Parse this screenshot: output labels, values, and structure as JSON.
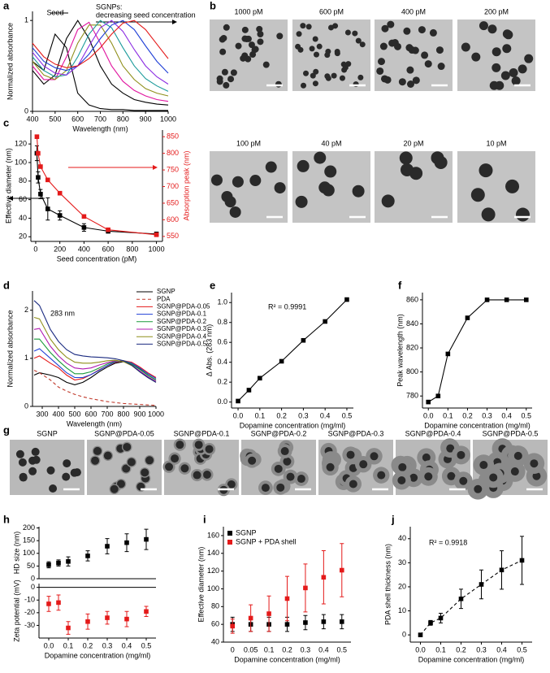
{
  "chart_data": [
    {
      "type": "line",
      "panel_label": "a",
      "xlabel": "Wavelength (nm)",
      "ylabel": "Normalized absorbance",
      "annotations": [
        "Seed",
        "SGNPs:",
        "decreasing seed concentration"
      ],
      "x": [
        400,
        450,
        500,
        550,
        600,
        650,
        700,
        750,
        800,
        850,
        900,
        950,
        1000
      ],
      "xlim": [
        400,
        1000
      ],
      "xticks": [
        400,
        500,
        600,
        700,
        800,
        900,
        1000
      ],
      "ylim": [
        0,
        1.1
      ],
      "yticks": [
        0,
        1
      ],
      "series": [
        {
          "color": "#000000",
          "values": [
            0.55,
            0.45,
            0.85,
            0.7,
            0.2,
            0.07,
            0.03,
            0.02,
            0.02,
            0.01,
            0.01,
            0.01,
            0.01
          ]
        },
        {
          "color": "#000000",
          "values": [
            0.45,
            0.3,
            0.4,
            0.8,
            1.0,
            0.8,
            0.5,
            0.3,
            0.2,
            0.13,
            0.1,
            0.08,
            0.07
          ]
        },
        {
          "color": "#e0139e",
          "values": [
            0.5,
            0.35,
            0.35,
            0.6,
            0.9,
            0.98,
            0.75,
            0.5,
            0.33,
            0.23,
            0.17,
            0.13,
            0.11
          ]
        },
        {
          "color": "#8f8f1a",
          "values": [
            0.55,
            0.4,
            0.35,
            0.45,
            0.75,
            0.95,
            0.95,
            0.75,
            0.5,
            0.35,
            0.25,
            0.2,
            0.17
          ]
        },
        {
          "color": "#1a9a9a",
          "values": [
            0.6,
            0.45,
            0.38,
            0.4,
            0.6,
            0.85,
            1.0,
            0.92,
            0.7,
            0.5,
            0.36,
            0.28,
            0.22
          ]
        },
        {
          "color": "#8a2be2",
          "values": [
            0.65,
            0.5,
            0.42,
            0.4,
            0.5,
            0.72,
            0.92,
            1.0,
            0.88,
            0.68,
            0.5,
            0.38,
            0.3
          ]
        },
        {
          "color": "#1f3fd6",
          "values": [
            0.7,
            0.55,
            0.48,
            0.45,
            0.5,
            0.63,
            0.8,
            0.95,
            1.0,
            0.9,
            0.72,
            0.55,
            0.42
          ]
        },
        {
          "color": "#e41a1a",
          "values": [
            0.75,
            0.6,
            0.52,
            0.48,
            0.5,
            0.58,
            0.7,
            0.85,
            0.97,
            1.0,
            0.9,
            0.74,
            0.58
          ]
        }
      ]
    },
    {
      "type": "line",
      "panel_label": "c",
      "markers": true,
      "xlabel": "Seed concentration (pM)",
      "ylabel": "Effective diameter (nm)",
      "y2label": "Absorption peak (nm)",
      "y2color": "#e41a1a",
      "x": [
        10,
        20,
        40,
        100,
        200,
        400,
        600,
        1000
      ],
      "xlim": [
        -40,
        1050
      ],
      "xticks": [
        0,
        200,
        400,
        600,
        800,
        1000
      ],
      "ylim": [
        15,
        135
      ],
      "yticks": [
        20,
        40,
        60,
        80,
        100,
        120
      ],
      "y2lim": [
        535,
        870
      ],
      "y2ticks": [
        550,
        600,
        650,
        700,
        750,
        800,
        850
      ],
      "series": [
        {
          "color": "#000000",
          "values": [
            110,
            84,
            66,
            50,
            43,
            30,
            26,
            23
          ],
          "errors": [
            8,
            6,
            5,
            12,
            5,
            4,
            2,
            2
          ]
        },
        {
          "color": "#e41a1a",
          "axis": "y2",
          "values": [
            850,
            800,
            760,
            720,
            680,
            610,
            570,
            555
          ]
        }
      ]
    },
    {
      "type": "line",
      "panel_label": "d",
      "xlabel": "Wavelength (nm)",
      "ylabel": "Normalized absorbance",
      "annotations": [
        "283 nm"
      ],
      "legend": "upper right",
      "x": [
        250,
        283,
        350,
        400,
        450,
        500,
        550,
        600,
        650,
        700,
        750,
        800,
        850,
        900,
        950,
        1000
      ],
      "xlim": [
        240,
        1000
      ],
      "xticks": [
        300,
        400,
        500,
        600,
        700,
        800,
        900,
        1000
      ],
      "ylim": [
        0,
        2.4
      ],
      "yticks": [
        0,
        1,
        2
      ],
      "series": [
        {
          "name": "SGNP",
          "color": "#000000",
          "values": [
            0.65,
            0.7,
            0.65,
            0.6,
            0.5,
            0.45,
            0.5,
            0.6,
            0.72,
            0.82,
            0.9,
            0.93,
            0.88,
            0.78,
            0.65,
            0.55
          ]
        },
        {
          "name": "PDA",
          "color": "#c0392b",
          "dash": true,
          "values": [
            0.75,
            0.7,
            0.55,
            0.4,
            0.32,
            0.25,
            0.2,
            0.16,
            0.13,
            0.1,
            0.08,
            0.06,
            0.05,
            0.04,
            0.03,
            0.02
          ]
        },
        {
          "name": "SGNP@PDA-0.05",
          "color": "#e41a1a",
          "values": [
            1.0,
            1.05,
            0.9,
            0.8,
            0.65,
            0.55,
            0.58,
            0.66,
            0.76,
            0.85,
            0.92,
            0.95,
            0.92,
            0.82,
            0.7,
            0.6
          ]
        },
        {
          "name": "SGNP@PDA-0.1",
          "color": "#1f3fd6",
          "values": [
            1.15,
            1.2,
            1.0,
            0.85,
            0.7,
            0.6,
            0.6,
            0.66,
            0.75,
            0.85,
            0.93,
            0.95,
            0.9,
            0.8,
            0.68,
            0.58
          ]
        },
        {
          "name": "SGNP@PDA-0.2",
          "color": "#1a9a3a",
          "values": [
            1.4,
            1.4,
            1.12,
            0.95,
            0.8,
            0.68,
            0.68,
            0.72,
            0.8,
            0.88,
            0.94,
            0.95,
            0.88,
            0.77,
            0.65,
            0.55
          ]
        },
        {
          "name": "SGNP@PDA-0.3",
          "color": "#b01ab0",
          "values": [
            1.6,
            1.62,
            1.25,
            1.05,
            0.9,
            0.8,
            0.78,
            0.8,
            0.86,
            0.91,
            0.95,
            0.94,
            0.86,
            0.74,
            0.62,
            0.52
          ]
        },
        {
          "name": "SGNP@PDA-0.4",
          "color": "#8f8f1a",
          "values": [
            1.85,
            1.82,
            1.4,
            1.18,
            1.02,
            0.92,
            0.9,
            0.9,
            0.92,
            0.95,
            0.96,
            0.93,
            0.85,
            0.72,
            0.6,
            0.5
          ]
        },
        {
          "name": "SGNP@PDA-0.5",
          "color": "#1a2a80",
          "values": [
            2.2,
            2.1,
            1.6,
            1.35,
            1.18,
            1.08,
            1.05,
            1.03,
            1.02,
            1.01,
            0.99,
            0.95,
            0.86,
            0.72,
            0.6,
            0.5
          ]
        }
      ]
    },
    {
      "type": "line",
      "panel_label": "e",
      "markers": true,
      "xlabel": "Dopamine concentration (mg/ml)",
      "ylabel": "Δ Abs. (283 nm)",
      "annotations": [
        "R² = 0.9991"
      ],
      "x": [
        0,
        0.05,
        0.1,
        0.2,
        0.3,
        0.4,
        0.5
      ],
      "xlim": [
        -0.03,
        0.53
      ],
      "xticks": [
        {
          "value": 0,
          "label": "0.0"
        },
        {
          "value": 0.1,
          "label": "0.1"
        },
        {
          "value": 0.2,
          "label": "0.2"
        },
        {
          "value": 0.3,
          "label": "0.3"
        },
        {
          "value": 0.4,
          "label": "0.4"
        },
        {
          "value": 0.5,
          "label": "0.5"
        }
      ],
      "ylim": [
        -0.06,
        1.1
      ],
      "yticks": [
        {
          "value": 0,
          "label": "0.0"
        },
        {
          "value": 0.2,
          "label": "0.2"
        },
        {
          "value": 0.4,
          "label": "0.4"
        },
        {
          "value": 0.6,
          "label": "0.6"
        },
        {
          "value": 0.8,
          "label": "0.8"
        },
        {
          "value": 1,
          "label": "1.0"
        }
      ],
      "series": [
        {
          "color": "#000000",
          "values": [
            0.01,
            0.12,
            0.24,
            0.41,
            0.62,
            0.81,
            1.03
          ]
        }
      ]
    },
    {
      "type": "line",
      "panel_label": "f",
      "markers": true,
      "xlabel": "Dopamine concentration (mg/ml)",
      "ylabel": "Peak wavelength (nm)",
      "x": [
        0,
        0.05,
        0.1,
        0.2,
        0.3,
        0.4,
        0.5
      ],
      "xlim": [
        -0.03,
        0.53
      ],
      "xticks": [
        {
          "value": 0,
          "label": "0.0"
        },
        {
          "value": 0.1,
          "label": "0.1"
        },
        {
          "value": 0.2,
          "label": "0.2"
        },
        {
          "value": 0.3,
          "label": "0.3"
        },
        {
          "value": 0.4,
          "label": "0.4"
        },
        {
          "value": 0.5,
          "label": "0.5"
        }
      ],
      "ylim": [
        770,
        866
      ],
      "yticks": [
        780,
        800,
        820,
        840,
        860
      ],
      "series": [
        {
          "color": "#000000",
          "values": [
            775,
            780,
            815,
            845,
            860,
            860,
            860
          ]
        }
      ]
    },
    {
      "type": "scatter",
      "panel_label": "h",
      "ylabel": "HD size (nm)",
      "x": [
        0,
        0.05,
        0.1,
        0.2,
        0.3,
        0.4,
        0.5
      ],
      "xlim": [
        -0.05,
        0.55
      ],
      "ylim": [
        0,
        205
      ],
      "yticks": [
        0,
        50,
        100,
        150,
        200
      ],
      "series": [
        {
          "color": "#000000",
          "values": [
            55,
            62,
            68,
            90,
            128,
            142,
            155
          ],
          "errors": [
            12,
            12,
            18,
            20,
            30,
            35,
            40
          ]
        }
      ]
    },
    {
      "type": "scatter",
      "zero_line": true,
      "xlabel": "Dopamine concentration (mg/ml)",
      "ylabel": "Zeta potential (mV)",
      "x": [
        0,
        0.05,
        0.1,
        0.2,
        0.3,
        0.4,
        0.5
      ],
      "xlim": [
        -0.05,
        0.55
      ],
      "xticks": [
        {
          "value": 0,
          "label": "0.0"
        },
        {
          "value": 0.1,
          "label": "0.1"
        },
        {
          "value": 0.2,
          "label": "0.2"
        },
        {
          "value": 0.3,
          "label": "0.3"
        },
        {
          "value": 0.4,
          "label": "0.4"
        },
        {
          "value": 0.5,
          "label": "0.5"
        }
      ],
      "ylim": [
        -40,
        3
      ],
      "yticks": [
        -30,
        -20,
        -10,
        0
      ],
      "series": [
        {
          "color": "#e41a1a",
          "values": [
            -13,
            -12,
            -32,
            -27,
            -24,
            -25,
            -19
          ],
          "errors": [
            6,
            6,
            5,
            6,
            5,
            6,
            4
          ]
        }
      ]
    },
    {
      "type": "scatter",
      "panel_label": "i",
      "legend": "upper left",
      "xlabel": "Dopamine concentration (mg/ml)",
      "ylabel": "Effective diameter (nm)",
      "categories": [
        "0",
        "0.05",
        "0.1",
        "0.2",
        "0.3",
        "0.4",
        "0.5"
      ],
      "ylim": [
        40,
        170
      ],
      "yticks": [
        40,
        60,
        80,
        100,
        120,
        140,
        160
      ],
      "series": [
        {
          "name": "SGNP",
          "color": "#000000",
          "values": [
            60,
            60,
            60,
            60,
            62,
            63,
            63
          ],
          "errors": [
            8,
            8,
            8,
            8,
            8,
            8,
            8
          ]
        },
        {
          "name": "SGNP + PDA shell",
          "color": "#e41a1a",
          "values": [
            58,
            67,
            72,
            89,
            101,
            113,
            121
          ],
          "errors": [
            8,
            15,
            20,
            25,
            27,
            30,
            30
          ]
        }
      ]
    },
    {
      "type": "line",
      "panel_label": "j",
      "markers": true,
      "xlabel": "Dopamine concentration (mg/ml)",
      "ylabel": "PDA shell thickness (nm)",
      "annotations": [
        "R² = 0.9918"
      ],
      "x": [
        0,
        0.05,
        0.1,
        0.2,
        0.3,
        0.4,
        0.5
      ],
      "xlim": [
        -0.05,
        0.55
      ],
      "xticks": [
        {
          "value": 0,
          "label": "0.0"
        },
        {
          "value": 0.1,
          "label": "0.1"
        },
        {
          "value": 0.2,
          "label": "0.2"
        },
        {
          "value": 0.3,
          "label": "0.3"
        },
        {
          "value": 0.4,
          "label": "0.4"
        },
        {
          "value": 0.5,
          "label": "0.5"
        }
      ],
      "ylim": [
        -3,
        45
      ],
      "yticks": [
        0,
        10,
        20,
        30,
        40
      ],
      "series": [
        {
          "color": "#000000",
          "dash": true,
          "values": [
            0,
            5,
            7,
            15,
            21,
            27,
            31
          ],
          "errors": [
            0,
            1,
            2,
            4,
            6,
            8,
            10
          ]
        }
      ]
    }
  ],
  "micrographs": {
    "b": {
      "panel_label": "b",
      "labels": [
        "1000 pM",
        "600 pM",
        "400 pM",
        "200 pM",
        "100 pM",
        "40 pM",
        "20 pM",
        "10 pM"
      ]
    },
    "g": {
      "panel_label": "g",
      "labels": [
        "SGNP",
        "SGNP@PDA-0.05",
        "SGNP@PDA-0.1",
        "SGNP@PDA-0.2",
        "SGNP@PDA-0.3",
        "SGNP@PDA-0.4",
        "SGNP@PDA-0.5"
      ]
    }
  }
}
